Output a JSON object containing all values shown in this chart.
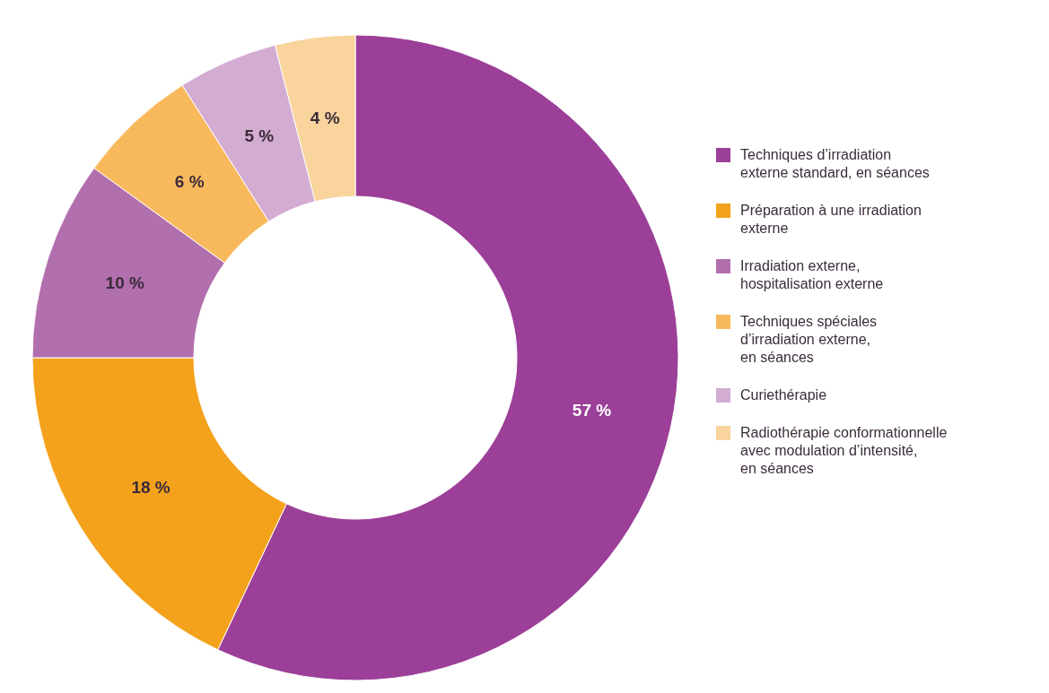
{
  "chart_data": {
    "type": "donut",
    "categories": [
      "Techniques d’irradiation\nexterne standard, en séances",
      "Préparation à une irradiation\nexterne",
      "Irradiation externe,\nhospitalisation externe",
      "Techniques spéciales\nd’irradiation externe,\nen séances",
      "Curiethérapie",
      "Radiothérapie conformationnelle\navec modulation d’intensité,\nen séances"
    ],
    "values": [
      57,
      18,
      10,
      6,
      5,
      4
    ],
    "value_labels": [
      "57 %",
      "18 %",
      "10 %",
      "6 %",
      "5 %",
      "4 %"
    ],
    "colors": [
      "#9c3f98",
      "#f4a21c",
      "#b26fae",
      "#f7b95c",
      "#d3acd2",
      "#f9d49c"
    ],
    "legend": "right"
  }
}
